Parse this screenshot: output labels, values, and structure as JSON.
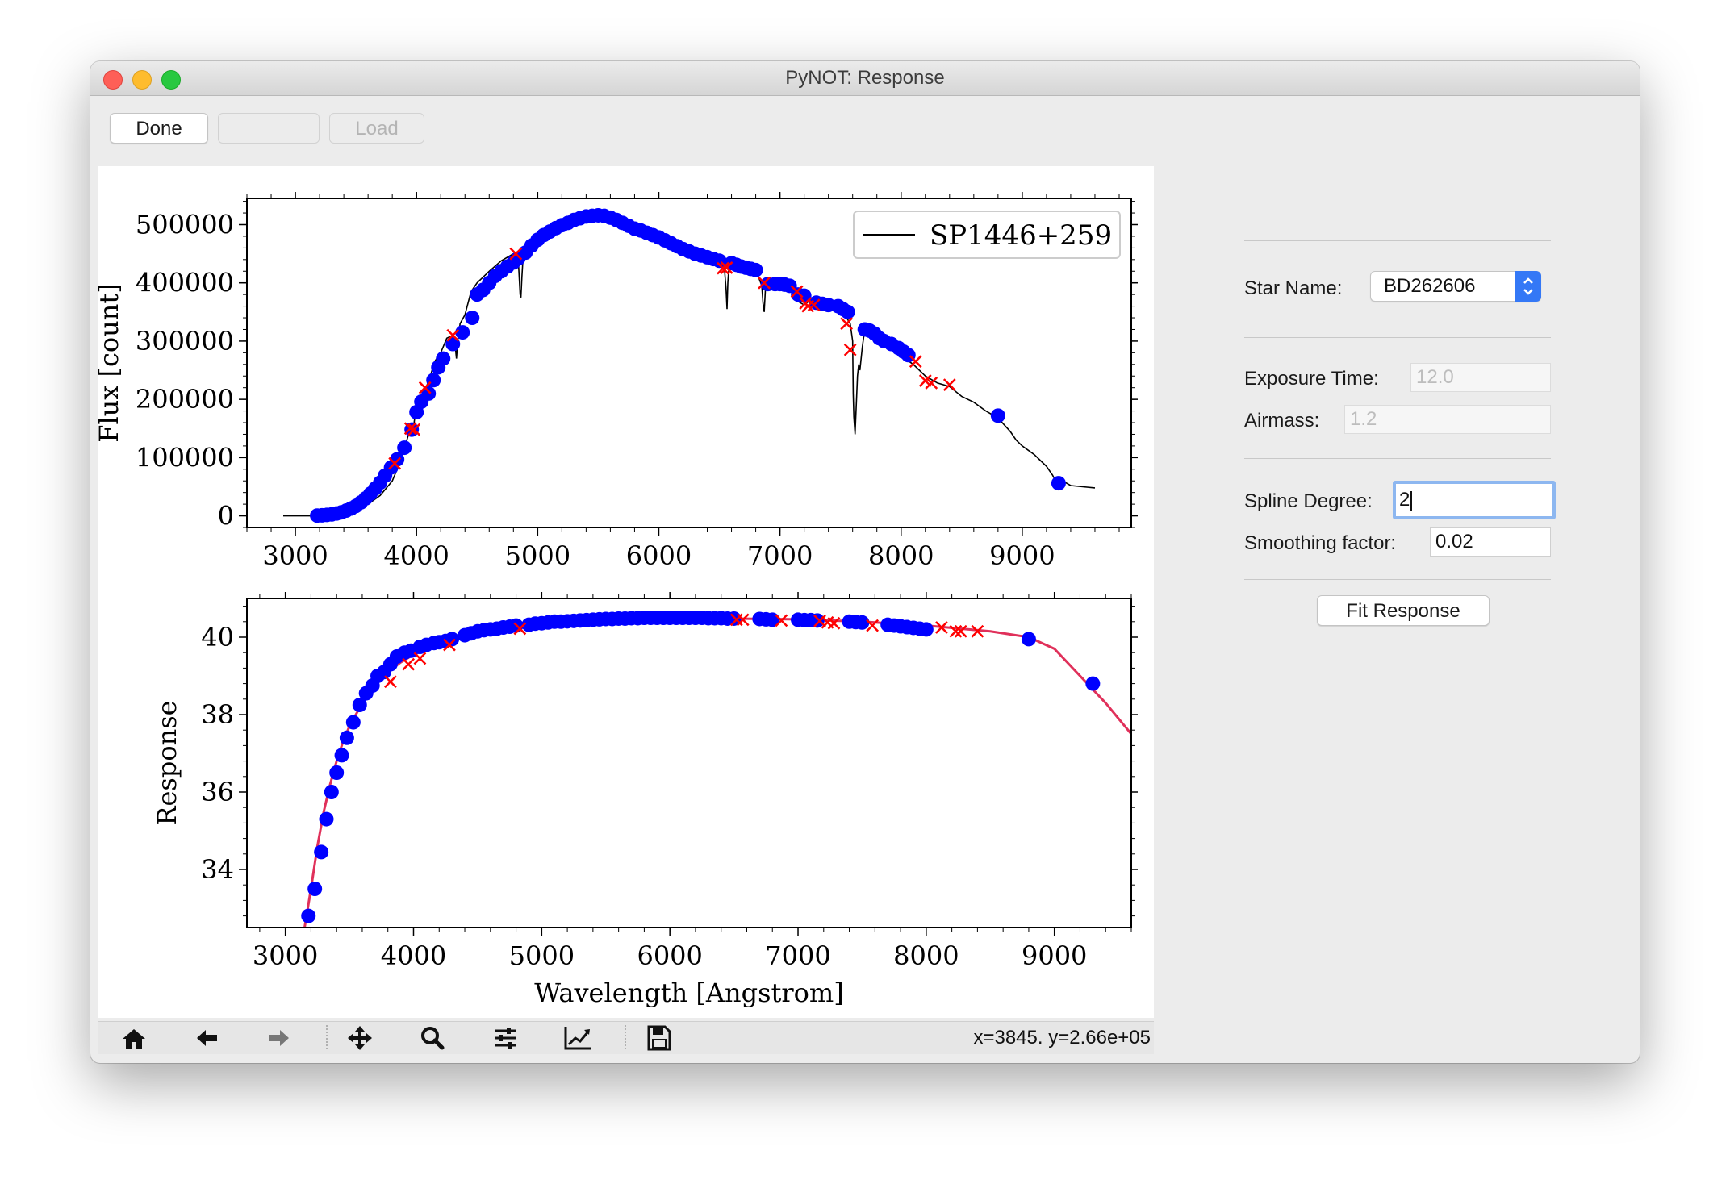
{
  "window": {
    "title": "PyNOT: Response"
  },
  "toolbar": {
    "done_label": "Done",
    "blank_label": "",
    "load_label": "Load"
  },
  "form": {
    "star_name_label": "Star Name:",
    "star_name_value": "BD262606",
    "exposure_label": "Exposure Time:",
    "exposure_value": "12.0",
    "airmass_label": "Airmass:",
    "airmass_value": "1.2",
    "spline_label": "Spline Degree:",
    "spline_value": "2",
    "smoothing_label": "Smoothing factor:",
    "smoothing_value": "0.02",
    "fit_button_label": "Fit Response"
  },
  "nav_toolbar": {
    "tools": [
      "home-icon",
      "back-arrow-icon",
      "forward-arrow-icon",
      "pan-icon",
      "zoom-icon",
      "subplots-icon",
      "edit-curve-icon",
      "save-icon"
    ],
    "coordinates": "x=3845. y=2.66e+05"
  },
  "colors": {
    "points": "#0000ff",
    "excluded": "#ff0000",
    "fit": "#e0305a",
    "spectrum": "#000000",
    "focus": "#8db7f0",
    "accent": "#3478f6"
  },
  "chart_data": [
    {
      "type": "line",
      "title": "",
      "xlabel": "",
      "ylabel": "Flux  [count]",
      "xlim": [
        2600,
        9900
      ],
      "ylim": [
        -20000,
        545000
      ],
      "xticks": [
        3000,
        4000,
        5000,
        6000,
        7000,
        8000,
        9000
      ],
      "yticks": [
        0,
        100000,
        200000,
        300000,
        400000,
        500000
      ],
      "ytick_labels": [
        "0",
        "100000",
        "200000",
        "300000",
        "400000",
        "500000"
      ],
      "legend": {
        "placement": "top-right",
        "entries": [
          "SP1446+259"
        ]
      },
      "series": [
        {
          "name": "SP1446+259",
          "style": "black-line",
          "x": [
            2900,
            3150,
            3200,
            3300,
            3400,
            3500,
            3600,
            3700,
            3800,
            3870,
            3890,
            3920,
            3950,
            3960,
            3980,
            4000,
            4050,
            4100,
            4150,
            4200,
            4250,
            4300,
            4320,
            4330,
            4340,
            4360,
            4400,
            4450,
            4500,
            4600,
            4700,
            4800,
            4840,
            4855,
            4862,
            4870,
            4880,
            4900,
            5000,
            5100,
            5200,
            5300,
            5400,
            5500,
            5600,
            5700,
            5800,
            5900,
            6000,
            6100,
            6200,
            6300,
            6400,
            6500,
            6540,
            6555,
            6563,
            6570,
            6580,
            6650,
            6700,
            6800,
            6850,
            6860,
            6870,
            6880,
            6900,
            6950,
            7000,
            7050,
            7100,
            7150,
            7200,
            7250,
            7300,
            7350,
            7400,
            7450,
            7500,
            7550,
            7580,
            7600,
            7605,
            7610,
            7620,
            7640,
            7650,
            7660,
            7680,
            7700,
            7720,
            7750,
            7800,
            7900,
            8000,
            8100,
            8200,
            8300,
            8400,
            8500,
            8600,
            8700,
            8800,
            8900,
            8950,
            9000,
            9100,
            9150,
            9200,
            9250,
            9300,
            9350,
            9400,
            9500,
            9600
          ],
          "y": [
            0,
            0,
            500,
            1500,
            4000,
            10000,
            20000,
            35000,
            60000,
            95000,
            110000,
            130000,
            150000,
            140000,
            160000,
            190000,
            210000,
            230000,
            265000,
            280000,
            305000,
            310000,
            290000,
            270000,
            300000,
            330000,
            345000,
            385000,
            400000,
            420000,
            438000,
            450000,
            440000,
            380000,
            375000,
            410000,
            445000,
            462000,
            485000,
            495000,
            505000,
            512000,
            515000,
            517000,
            513000,
            505000,
            497000,
            488000,
            480000,
            472000,
            463000,
            455000,
            450000,
            447000,
            430000,
            390000,
            355000,
            400000,
            430000,
            433000,
            428000,
            423000,
            395000,
            365000,
            350000,
            390000,
            400000,
            400000,
            398000,
            395000,
            385000,
            368000,
            362000,
            370000,
            360000,
            365000,
            360000,
            355000,
            355000,
            340000,
            330000,
            300000,
            210000,
            170000,
            140000,
            240000,
            260000,
            250000,
            290000,
            320000,
            318000,
            315000,
            305000,
            290000,
            275000,
            260000,
            240000,
            228000,
            222000,
            205000,
            195000,
            180000,
            168000,
            145000,
            130000,
            120000,
            105000,
            95000,
            85000,
            70000,
            50000,
            58000,
            52000,
            50000,
            48000
          ]
        },
        {
          "name": "",
          "style": "blue-points",
          "x": [
            3180,
            3220,
            3260,
            3300,
            3340,
            3380,
            3420,
            3460,
            3500,
            3540,
            3580,
            3620,
            3660,
            3700,
            3740,
            3790,
            3840,
            3900,
            3960,
            4000,
            4040,
            4100,
            4140,
            4180,
            4220,
            4300,
            4380,
            4460,
            4500,
            4550,
            4600,
            4650,
            4700,
            4750,
            4800,
            4840,
            4900,
            4950,
            5000,
            5050,
            5100,
            5150,
            5200,
            5250,
            5300,
            5350,
            5400,
            5450,
            5500,
            5550,
            5600,
            5650,
            5700,
            5750,
            5800,
            5850,
            5900,
            5950,
            6000,
            6050,
            6100,
            6150,
            6200,
            6250,
            6300,
            6350,
            6400,
            6450,
            6500,
            6600,
            6640,
            6680,
            6720,
            6760,
            6800,
            6900,
            6960,
            7000,
            7040,
            7080,
            7150,
            7200,
            7300,
            7350,
            7400,
            7480,
            7520,
            7560,
            7700,
            7740,
            7780,
            7820,
            7860,
            7920,
            7980,
            8020,
            8060,
            8800,
            9300
          ],
          "y": [
            500,
            900,
            1600,
            2500,
            4000,
            6000,
            9000,
            12500,
            17000,
            23000,
            30000,
            38000,
            47000,
            57000,
            69000,
            83000,
            97000,
            117000,
            148000,
            178000,
            196000,
            210000,
            233000,
            255000,
            270000,
            295000,
            315000,
            340000,
            380000,
            388000,
            400000,
            412000,
            420000,
            428000,
            435000,
            442000,
            452000,
            464000,
            474000,
            482000,
            488000,
            494000,
            499000,
            503000,
            508000,
            511000,
            514000,
            515000,
            516000,
            515000,
            512000,
            508000,
            503000,
            498000,
            493000,
            490000,
            486000,
            482000,
            478000,
            473000,
            468000,
            463000,
            458000,
            454000,
            450000,
            447000,
            444000,
            441000,
            438000,
            434000,
            431000,
            428000,
            426000,
            424000,
            422000,
            398000,
            398000,
            398000,
            397000,
            395000,
            380000,
            378000,
            366000,
            364000,
            362000,
            360000,
            355000,
            350000,
            320000,
            318000,
            313000,
            305000,
            300000,
            295000,
            288000,
            282000,
            276000,
            172000,
            56000
          ]
        },
        {
          "name": "",
          "style": "red-x",
          "x": [
            3820,
            3950,
            3980,
            4070,
            4300,
            4820,
            6530,
            6560,
            6870,
            7140,
            7210,
            7230,
            7280,
            7550,
            7580,
            8120,
            8200,
            8250,
            8400
          ],
          "y": [
            90000,
            150000,
            148000,
            220000,
            310000,
            450000,
            425000,
            426000,
            400000,
            385000,
            365000,
            360000,
            362000,
            330000,
            285000,
            265000,
            232000,
            228000,
            225000
          ]
        }
      ]
    },
    {
      "type": "line",
      "title": "",
      "xlabel": "Wavelength  [Angstrom]",
      "ylabel": "Response",
      "xlim": [
        2700,
        9600
      ],
      "ylim": [
        32.5,
        41
      ],
      "xticks": [
        3000,
        4000,
        5000,
        6000,
        7000,
        8000,
        9000
      ],
      "yticks": [
        34,
        36,
        38,
        40
      ],
      "series": [
        {
          "name": "",
          "style": "red-fit-line",
          "x": [
            3150,
            3200,
            3250,
            3300,
            3350,
            3400,
            3450,
            3500,
            3600,
            3700,
            3800,
            3900,
            4000,
            4200,
            4400,
            4600,
            4800,
            5000,
            5500,
            6000,
            6500,
            7000,
            7500,
            8000,
            8500,
            8800,
            9000,
            9200,
            9400,
            9600
          ],
          "y": [
            32.5,
            33.5,
            34.6,
            35.5,
            36.2,
            36.8,
            37.3,
            37.7,
            38.3,
            38.75,
            39.1,
            39.35,
            39.55,
            39.8,
            40.0,
            40.12,
            40.22,
            40.32,
            40.44,
            40.48,
            40.48,
            40.46,
            40.4,
            40.3,
            40.15,
            40.0,
            39.7,
            39.0,
            38.3,
            37.5
          ]
        },
        {
          "name": "",
          "style": "blue-points",
          "x": [
            3180,
            3230,
            3280,
            3320,
            3360,
            3400,
            3440,
            3480,
            3530,
            3580,
            3630,
            3680,
            3720,
            3770,
            3820,
            3870,
            3930,
            3980,
            4050,
            4100,
            4160,
            4200,
            4250,
            4300,
            4400,
            4450,
            4500,
            4550,
            4600,
            4650,
            4700,
            4750,
            4800,
            4900,
            4950,
            5000,
            5050,
            5100,
            5150,
            5200,
            5250,
            5300,
            5350,
            5400,
            5450,
            5500,
            5550,
            5600,
            5650,
            5700,
            5750,
            5800,
            5850,
            5900,
            5950,
            6000,
            6050,
            6100,
            6150,
            6200,
            6250,
            6300,
            6350,
            6400,
            6450,
            6500,
            6700,
            6750,
            6800,
            7000,
            7050,
            7100,
            7150,
            7400,
            7450,
            7500,
            7700,
            7750,
            7800,
            7850,
            7900,
            7950,
            8000,
            8800,
            9300
          ],
          "y": [
            32.8,
            33.5,
            34.45,
            35.3,
            36.0,
            36.5,
            36.95,
            37.4,
            37.8,
            38.25,
            38.55,
            38.75,
            39.0,
            39.1,
            39.3,
            39.5,
            39.6,
            39.65,
            39.75,
            39.8,
            39.85,
            39.87,
            39.9,
            39.95,
            40.05,
            40.1,
            40.15,
            40.18,
            40.2,
            40.22,
            40.25,
            40.27,
            40.3,
            40.32,
            40.35,
            40.36,
            40.38,
            40.4,
            40.4,
            40.41,
            40.42,
            40.43,
            40.44,
            40.45,
            40.46,
            40.47,
            40.47,
            40.48,
            40.48,
            40.49,
            40.49,
            40.5,
            40.5,
            40.5,
            40.5,
            40.5,
            40.5,
            40.5,
            40.5,
            40.5,
            40.5,
            40.49,
            40.49,
            40.49,
            40.48,
            40.48,
            40.47,
            40.46,
            40.45,
            40.45,
            40.44,
            40.44,
            40.43,
            40.4,
            40.39,
            40.38,
            40.32,
            40.3,
            40.28,
            40.26,
            40.24,
            40.22,
            40.2,
            39.95,
            38.8
          ]
        },
        {
          "name": "",
          "style": "red-x",
          "x": [
            3820,
            3960,
            4050,
            4280,
            4830,
            6520,
            6570,
            6870,
            7170,
            7230,
            7280,
            7580,
            8120,
            8230,
            8270,
            8400
          ],
          "y": [
            38.85,
            39.3,
            39.45,
            39.8,
            40.22,
            40.45,
            40.45,
            40.43,
            40.42,
            40.38,
            40.36,
            40.3,
            40.25,
            40.15,
            40.15,
            40.15
          ]
        }
      ]
    }
  ]
}
